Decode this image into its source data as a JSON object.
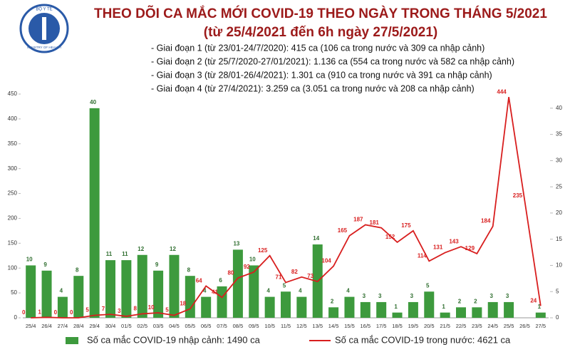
{
  "logo": {
    "top_text": "BỘ Y TẾ",
    "bottom_text": "MINISTRY OF HEALTH"
  },
  "chart_data": {
    "type": "bar-line",
    "title": "THEO DÕI CA MẮC MỚI COVID-19 THEO NGÀY TRONG THÁNG 5/2021",
    "subtitle": "(từ 25/4/2021 đến 6h ngày 27/5/2021)",
    "notes": [
      "- Giai đoạn 1 (từ 23/01-24/7/2020): 415 ca (106 ca trong nước và 309 ca nhập cảnh)",
      "- Giai đoạn 2 (từ 25/7/2020-27/01/2021): 1.136 ca (554 ca trong nước và 582 ca nhập cảnh)",
      "- Giai đoạn 3 (từ 28/01-26/4/2021): 1.301 ca (910 ca trong nước và 391 ca nhập cảnh)",
      "- Giai đoạn 4 (từ 27/4/2021): 3.259 ca (3.051 ca trong nước và 208 ca nhập cảnh)"
    ],
    "categories": [
      "25/4",
      "26/4",
      "27/4",
      "28/4",
      "29/4",
      "30/4",
      "01/5",
      "02/5",
      "03/5",
      "04/5",
      "05/5",
      "06/5",
      "07/5",
      "08/5",
      "09/5",
      "10/5",
      "11/5",
      "12/5",
      "13/5",
      "14/5",
      "15/5",
      "16/5",
      "17/5",
      "18/5",
      "19/5",
      "20/5",
      "21/5",
      "22/5",
      "23/5",
      "24/5",
      "25/5",
      "26/5",
      "27/5"
    ],
    "series": [
      {
        "name": "Số ca mắc COVID-19 nhập cảnh: 1490 ca",
        "kind": "bar",
        "axis": "y2",
        "color": "#3d9a3d",
        "values": [
          10,
          9,
          4,
          8,
          40,
          11,
          11,
          12,
          9,
          12,
          8,
          4,
          6,
          13,
          10,
          4,
          5,
          4,
          14,
          2,
          4,
          3,
          3,
          1,
          3,
          5,
          1,
          2,
          2,
          3,
          3,
          null,
          1
        ]
      },
      {
        "name": "Số ca mắc COVID-19 trong nước: 4621 ca",
        "kind": "line",
        "color": "#d81e1e",
        "values": [
          0,
          1,
          0,
          0,
          5,
          7,
          3,
          8,
          10,
          5,
          18,
          64,
          41,
          80,
          92,
          125,
          71,
          82,
          73,
          104,
          165,
          187,
          181,
          152,
          175,
          114,
          131,
          143,
          129,
          184,
          444,
          235,
          24
        ]
      }
    ],
    "ylim": [
      0,
      450
    ],
    "yticks": [
      0,
      50,
      100,
      150,
      200,
      250,
      300,
      350,
      400,
      450
    ],
    "y2lim": [
      0,
      42.7
    ],
    "y2ticks": [
      0,
      5,
      10,
      15,
      20,
      25,
      30,
      35,
      40
    ],
    "grid": false
  }
}
